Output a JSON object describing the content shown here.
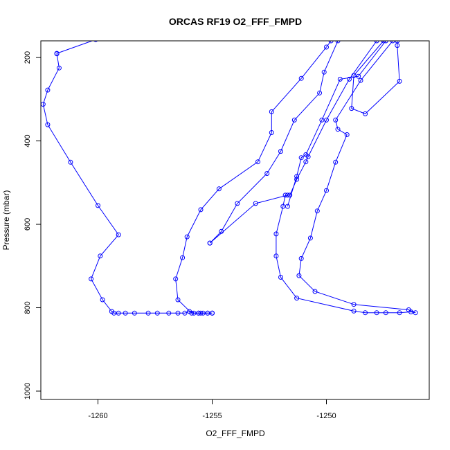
{
  "chart_data": {
    "type": "line",
    "title": "ORCAS RF19 O2_FFF_FMPD",
    "xlabel": "O2_FFF_FMPD",
    "ylabel": "Pressure (mbar)",
    "xlim": [
      -1262.5,
      -1245.5
    ],
    "ylim": [
      1020,
      160
    ],
    "y_reversed": true,
    "grid": false,
    "x_ticks": [
      -1260,
      -1255,
      -1250
    ],
    "x_tick_labels": [
      "-1260",
      "-1255",
      "-1250"
    ],
    "y_ticks": [
      200,
      400,
      600,
      800,
      1000
    ],
    "y_tick_labels": [
      "200",
      "400",
      "600",
      "800",
      "1000"
    ],
    "marker": "open-circle",
    "colors": {
      "series": "#0000ff",
      "axis": "#000000",
      "background": "#ffffff"
    },
    "series": [
      {
        "points": [
          [
            -1260.1,
            157
          ],
          [
            -1261.8,
            190
          ],
          [
            -1261.8,
            191
          ],
          [
            -1261.7,
            225
          ],
          [
            -1262.2,
            278
          ],
          [
            -1262.4,
            312
          ],
          [
            -1262.2,
            361
          ],
          [
            -1261.2,
            451
          ],
          [
            -1260.0,
            555
          ],
          [
            -1259.1,
            625
          ],
          [
            -1259.9,
            676
          ],
          [
            -1260.3,
            731
          ],
          [
            -1259.8,
            781
          ],
          [
            -1259.4,
            809
          ],
          [
            -1259.3,
            813
          ],
          [
            -1259.1,
            813
          ],
          [
            -1258.8,
            813
          ],
          [
            -1258.4,
            813
          ],
          [
            -1257.8,
            813
          ],
          [
            -1257.4,
            813
          ],
          [
            -1256.9,
            813
          ],
          [
            -1256.5,
            813
          ],
          [
            -1256.2,
            813
          ],
          [
            -1256.0,
            809
          ],
          [
            -1255.8,
            813
          ],
          [
            -1255.6,
            813
          ],
          [
            -1255.5,
            813
          ],
          [
            -1255.4,
            813
          ],
          [
            -1255.2,
            813
          ],
          [
            -1255.0,
            813
          ],
          [
            -1255.0,
            813
          ]
        ]
      },
      {
        "points": [
          [
            -1255.0,
            813
          ],
          [
            -1255.2,
            813
          ],
          [
            -1255.6,
            813
          ],
          [
            -1255.9,
            813
          ],
          [
            -1256.5,
            781
          ],
          [
            -1256.6,
            731
          ],
          [
            -1256.3,
            680
          ],
          [
            -1256.1,
            630
          ],
          [
            -1255.5,
            565
          ],
          [
            -1254.7,
            515
          ],
          [
            -1253.0,
            450
          ],
          [
            -1252.4,
            380
          ],
          [
            -1252.4,
            330
          ],
          [
            -1251.1,
            250
          ],
          [
            -1250.0,
            175
          ],
          [
            -1249.8,
            160
          ]
        ]
      },
      {
        "points": [
          [
            -1255.1,
            645
          ],
          [
            -1254.6,
            617
          ],
          [
            -1253.9,
            550
          ],
          [
            -1252.6,
            478
          ],
          [
            -1252.0,
            425
          ],
          [
            -1251.4,
            350
          ],
          [
            -1250.3,
            285
          ],
          [
            -1250.1,
            235
          ],
          [
            -1249.5,
            160
          ]
        ]
      },
      {
        "points": [
          [
            -1255.1,
            645
          ],
          [
            -1253.1,
            550
          ],
          [
            -1251.7,
            530
          ],
          [
            -1251.6,
            530
          ],
          [
            -1251.3,
            492
          ],
          [
            -1250.9,
            450
          ],
          [
            -1250.8,
            438
          ],
          [
            -1250.0,
            350
          ],
          [
            -1249.0,
            252
          ],
          [
            -1247.8,
            160
          ]
        ]
      },
      {
        "points": [
          [
            -1251.7,
            557
          ],
          [
            -1251.3,
            485
          ],
          [
            -1251.1,
            440
          ],
          [
            -1250.9,
            433
          ],
          [
            -1250.2,
            350
          ],
          [
            -1249.4,
            252
          ],
          [
            -1248.6,
            245
          ],
          [
            -1247.4,
            160
          ]
        ]
      },
      {
        "points": [
          [
            -1246.9,
            160
          ],
          [
            -1246.9,
            171
          ],
          [
            -1246.8,
            257
          ],
          [
            -1248.3,
            335
          ],
          [
            -1248.9,
            322
          ],
          [
            -1248.8,
            243
          ],
          [
            -1247.5,
            160
          ]
        ]
      },
      {
        "points": [
          [
            -1247.1,
            160
          ],
          [
            -1248.5,
            255
          ],
          [
            -1249.6,
            350
          ],
          [
            -1249.5,
            372
          ],
          [
            -1249.1,
            385
          ],
          [
            -1249.6,
            451
          ],
          [
            -1250.0,
            519
          ],
          [
            -1250.4,
            568
          ],
          [
            -1250.7,
            633
          ],
          [
            -1251.1,
            682
          ],
          [
            -1251.2,
            723
          ],
          [
            -1250.5,
            761
          ],
          [
            -1248.8,
            792
          ],
          [
            -1246.4,
            805
          ],
          [
            -1246.1,
            812
          ],
          [
            -1246.3,
            810
          ],
          [
            -1246.8,
            812
          ],
          [
            -1247.4,
            812
          ],
          [
            -1247.8,
            812
          ],
          [
            -1248.3,
            812
          ],
          [
            -1248.8,
            808
          ],
          [
            -1251.3,
            777
          ],
          [
            -1252.0,
            727
          ],
          [
            -1252.2,
            676
          ],
          [
            -1252.2,
            623
          ],
          [
            -1251.9,
            557
          ],
          [
            -1251.8,
            530
          ]
        ]
      }
    ]
  }
}
